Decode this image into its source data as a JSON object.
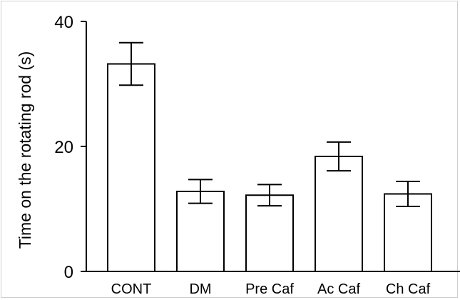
{
  "chart_data": {
    "type": "bar",
    "title": "",
    "xlabel": "",
    "ylabel": "Time on the rotating rod (s)",
    "ylim": [
      0,
      40
    ],
    "yticks": [
      0,
      20,
      40
    ],
    "categories": [
      "CONT",
      "DM",
      "Pre Caf",
      "Ac Caf",
      "Ch Caf"
    ],
    "values": [
      33.2,
      12.8,
      12.2,
      18.4,
      12.4
    ],
    "errors": [
      3.4,
      1.9,
      1.7,
      2.3,
      2.0
    ],
    "grid": false,
    "legend": "none",
    "bar_fill": "#ffffff",
    "bar_stroke": "#000000"
  }
}
